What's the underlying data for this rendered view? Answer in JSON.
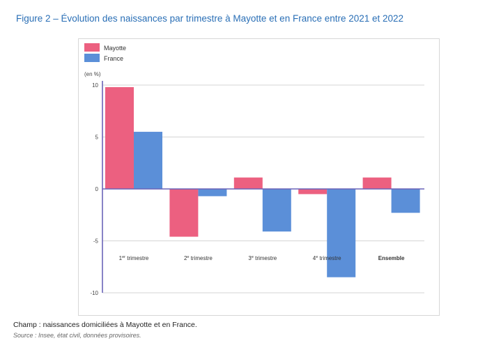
{
  "title": "Figure 2 – Évolution des naissances par trimestre à Mayotte et en France entre 2021 et 2022",
  "footnote": "Champ : naissances domiciliées à Mayotte et en France.",
  "source": "Source : Insee, état civil, données provisoires.",
  "colors": {
    "mayotte": "#ec6080",
    "france": "#5b8fd8"
  },
  "chart_data": {
    "type": "bar",
    "ylabel": "(en %)",
    "ylim": [
      -10,
      10
    ],
    "yticks": [
      "10",
      "5",
      "0",
      "-5",
      "-10"
    ],
    "ytick_values": [
      10,
      5,
      0,
      -5,
      -10
    ],
    "grid": true,
    "legend_position": "top-left",
    "categories": [
      {
        "num": "1",
        "sup": "er",
        "rest": " trimestre",
        "bold": false
      },
      {
        "num": "2",
        "sup": "e",
        "rest": " trimestre",
        "bold": false
      },
      {
        "num": "3",
        "sup": "e",
        "rest": " trimestre",
        "bold": false
      },
      {
        "num": "4",
        "sup": "e",
        "rest": " trimestre",
        "bold": false
      },
      {
        "num": "Ensemble",
        "sup": "",
        "rest": "",
        "bold": true
      }
    ],
    "series": [
      {
        "name": "Mayotte",
        "color": "#ec6080",
        "values": [
          9.8,
          -4.6,
          1.1,
          -0.5,
          1.1
        ]
      },
      {
        "name": "France",
        "color": "#5b8fd8",
        "values": [
          5.5,
          -0.7,
          -4.1,
          -8.5,
          -2.3
        ]
      }
    ]
  }
}
